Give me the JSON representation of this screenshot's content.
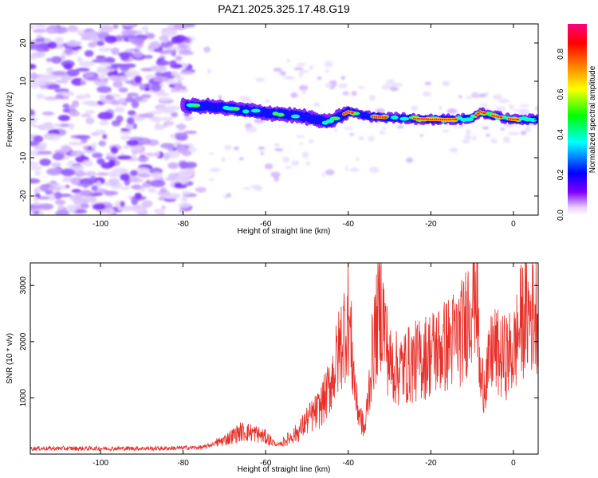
{
  "title": "PAZ1.2025.325.17.48.G19",
  "chart_data": [
    {
      "type": "heatmap",
      "name": "spectrogram",
      "xlabel": "Height of straight line (km)",
      "ylabel": "Frequency (Hz)",
      "xlim": [
        -117,
        6
      ],
      "ylim": [
        -25,
        25
      ],
      "xticks": [
        -100,
        -80,
        -60,
        -40,
        -20,
        0
      ],
      "xtick_labels": [
        "-100",
        "-80",
        "-60",
        "-40",
        "-20",
        "0"
      ],
      "yticks": [
        20,
        10,
        0,
        -10,
        -20
      ],
      "ytick_labels": [
        "20",
        "10",
        "0",
        "-10",
        "-20"
      ],
      "colorbar": {
        "label": "Normalized spectral amplitude",
        "range": [
          0,
          0.95
        ],
        "ticks": [
          0.0,
          0.2,
          0.4,
          0.6,
          0.8
        ],
        "tick_labels": [
          "0.0",
          "0.2",
          "0.4",
          "0.6",
          "0.8"
        ],
        "colors": [
          "#ffffff",
          "#8000ff",
          "#0000ff",
          "#00ffff",
          "#00ff00",
          "#ffff00",
          "#ff8000",
          "#ff0000",
          "#ff0080"
        ]
      },
      "ridge": [
        {
          "x": -80,
          "y": 3.5
        },
        {
          "x": -75,
          "y": 3.6
        },
        {
          "x": -70,
          "y": 3.0
        },
        {
          "x": -65,
          "y": 2.4
        },
        {
          "x": -60,
          "y": 1.8
        },
        {
          "x": -55,
          "y": 1.3
        },
        {
          "x": -50,
          "y": 0.6
        },
        {
          "x": -45,
          "y": -0.8
        },
        {
          "x": -40,
          "y": 2.0
        },
        {
          "x": -35,
          "y": 0.8
        },
        {
          "x": -30,
          "y": 0.5
        },
        {
          "x": -25,
          "y": 0.3
        },
        {
          "x": -20,
          "y": 0.0
        },
        {
          "x": -15,
          "y": 0.0
        },
        {
          "x": -10,
          "y": 0.2
        },
        {
          "x": -8,
          "y": 2.0
        },
        {
          "x": -5,
          "y": 1.0
        },
        {
          "x": 0,
          "y": 0.0
        },
        {
          "x": 5,
          "y": 0.0
        }
      ],
      "noise_region": {
        "x_from": -117,
        "x_to": -78
      }
    },
    {
      "type": "line",
      "name": "snr",
      "xlabel": "Height of straight line (km)",
      "ylabel": "SNR (10 * v/v)",
      "xlim": [
        -117,
        6
      ],
      "ylim": [
        0,
        3400
      ],
      "xticks": [
        -100,
        -80,
        -60,
        -40,
        -20,
        0
      ],
      "xtick_labels": [
        "-100",
        "-80",
        "-60",
        "-40",
        "-20",
        "0"
      ],
      "yticks": [
        1000,
        2000,
        3000
      ],
      "ytick_labels": [
        "1000",
        "2000",
        "3000"
      ],
      "color": "#e8302a",
      "series": [
        {
          "name": "SNR",
          "x": [
            -117,
            -100,
            -85,
            -75,
            -70,
            -66,
            -63,
            -60,
            -57,
            -55,
            -52,
            -50,
            -47,
            -45,
            -43,
            -41,
            -40,
            -38,
            -36,
            -34,
            -32,
            -30,
            -28,
            -25,
            -22,
            -20,
            -17,
            -15,
            -12,
            -10,
            -9,
            -8,
            -6,
            -5,
            -3,
            0,
            2,
            4,
            6
          ],
          "y": [
            100,
            100,
            100,
            120,
            250,
            400,
            380,
            300,
            150,
            250,
            400,
            600,
            800,
            1100,
            1600,
            2200,
            2500,
            900,
            400,
            1900,
            2700,
            1600,
            1500,
            1600,
            1700,
            1800,
            1900,
            2000,
            2200,
            2900,
            3100,
            1200,
            1500,
            1900,
            1700,
            1800,
            2400,
            2500,
            2600
          ]
        }
      ]
    }
  ]
}
